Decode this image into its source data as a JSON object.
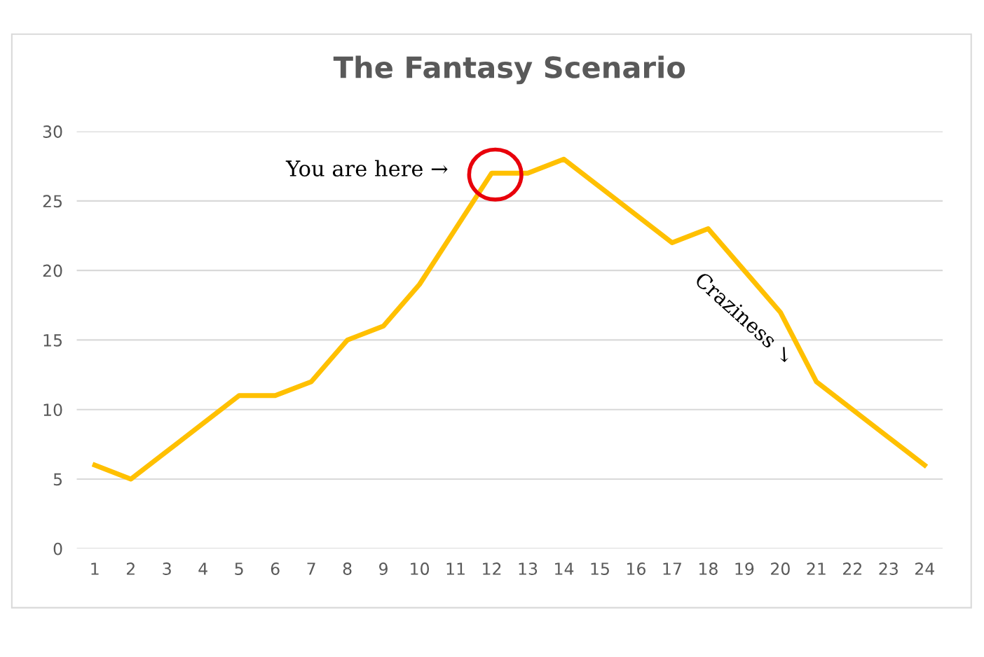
{
  "chart_data": {
    "type": "line",
    "title": "The Fantasy Scenario",
    "categories": [
      "1",
      "2",
      "3",
      "4",
      "5",
      "6",
      "7",
      "8",
      "9",
      "10",
      "11",
      "12",
      "13",
      "14",
      "15",
      "16",
      "17",
      "18",
      "19",
      "20",
      "21",
      "22",
      "23",
      "24"
    ],
    "series": [
      {
        "color": "#ffc000",
        "values": [
          6,
          5,
          7,
          9,
          11,
          11,
          12,
          15,
          16,
          19,
          23,
          27,
          27,
          28,
          26,
          24,
          22,
          23,
          20,
          17,
          12,
          10,
          8,
          6
        ]
      }
    ],
    "ylim": [
      0,
      30
    ],
    "yticks": [
      0,
      5,
      10,
      15,
      20,
      25,
      30
    ],
    "grid": "y",
    "marker": "none",
    "line_style": "solid",
    "annotations": [
      {
        "text": "You are here →",
        "x": "12",
        "y": 27
      },
      "Craziness ↘"
    ]
  }
}
